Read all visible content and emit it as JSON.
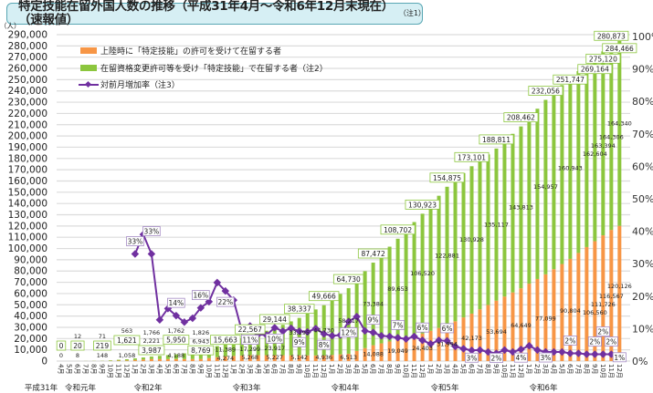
{
  "title": "特定技能在留外国人数の推移（平成31年4月～令和6年12月末現在）（速報値）",
  "title_note": "（注1）",
  "colors": {
    "orange": "#f79646",
    "green": "#8cc63e",
    "purple": "#7030a0",
    "title_bg": "#d6eff4",
    "title_border": "#5aa7b4"
  },
  "chart_data": {
    "type": "bar+line",
    "y_unit": "（人）",
    "ylim": [
      0,
      290000
    ],
    "y2lim": [
      0,
      100
    ],
    "grid": true,
    "legend_placement": "top-left",
    "y_ticks": [
      "0",
      "10,000",
      "20,000",
      "30,000",
      "40,000",
      "50,000",
      "60,000",
      "70,000",
      "80,000",
      "90,000",
      "100,000",
      "110,000",
      "120,000",
      "130,000",
      "140,000",
      "150,000",
      "160,000",
      "170,000",
      "180,000",
      "190,000",
      "200,000",
      "210,000",
      "220,000",
      "230,000",
      "240,000",
      "250,000",
      "260,000",
      "270,000",
      "280,000",
      "290,000"
    ],
    "y2_ticks": [
      "0%",
      "10%",
      "20%",
      "30%",
      "40%",
      "50%",
      "60%",
      "70%",
      "80%",
      "90%",
      "100%"
    ],
    "year_labels": [
      "平成31年",
      "令和元年",
      "令和2年",
      "令和3年",
      "令和4年",
      "令和5年",
      "令和6年"
    ],
    "categories": [
      "4月",
      "5月",
      "6月",
      "7月",
      "8月",
      "9月",
      "10月",
      "11月",
      "12月",
      "1月",
      "2月",
      "3月",
      "4月",
      "5月",
      "6月",
      "7月",
      "8月",
      "9月",
      "10月",
      "11月",
      "12月",
      "1月",
      "2月",
      "3月",
      "4月",
      "5月",
      "6月",
      "7月",
      "8月",
      "9月",
      "10月",
      "11月",
      "12月",
      "1月",
      "2月",
      "3月",
      "4月",
      "5月",
      "6月",
      "7月",
      "8月",
      "9月",
      "10月",
      "11月",
      "12月",
      "1月",
      "2月",
      "3月",
      "4月",
      "5月",
      "6月",
      "7月",
      "8月",
      "9月",
      "10月",
      "11月",
      "12月",
      "1月",
      "2月",
      "3月",
      "4月",
      "5月",
      "6月",
      "7月",
      "8月",
      "9月",
      "10月",
      "11月",
      "12月"
    ],
    "series": [
      {
        "name": "上陸時に「特定技能」の許可を受けて在留する者",
        "type": "bar-stacked",
        "values": [
          0,
          6,
          12,
          32,
          51,
          71,
          235,
          399,
          563,
          964,
          1365,
          1766,
          1765,
          1763,
          1762,
          1783,
          1805,
          1826,
          2642,
          3458,
          4274,
          4605,
          4937,
          5268,
          5254,
          5241,
          5227,
          5199,
          5170,
          5142,
          5073,
          5005,
          4936,
          5462,
          5987,
          6513,
          9038,
          11563,
          14088,
          15742,
          17395,
          19049,
          20834,
          22618,
          24403,
          26933,
          29464,
          31994,
          35387,
          38780,
          42173,
          46013,
          49854,
          53694,
          57346,
          60997,
          64649,
          68799,
          72949,
          77099,
          81667,
          86236,
          90804,
          96056,
          101308,
          106560,
          111726,
          116567,
          120126
        ]
      },
      {
        "name": "在留資格変更許可等を受け「特定技能」で在留する者（注2）",
        "type": "bar-stacked",
        "values": [
          0,
          4,
          8,
          55,
          101,
          148,
          451,
          755,
          1058,
          1446,
          1833,
          2221,
          2877,
          3532,
          4188,
          5106,
          6025,
          6943,
          8425,
          9907,
          11389,
          13359,
          15329,
          17299,
          19505,
          21711,
          23917,
          27010,
          30102,
          33195,
          37040,
          40885,
          44730,
          49226,
          53721,
          58217,
          63273,
          68328,
          73384,
          78807,
          84230,
          89653,
          95275,
          100898,
          106520,
          111974,
          117427,
          122881,
          125563,
          128246,
          130928,
          132324,
          133721,
          135117,
          138016,
          140915,
          143813,
          147528,
          151242,
          154957,
          156952,
          158948,
          160943,
          161497,
          162050,
          162604,
          163394,
          164306,
          164340
        ]
      },
      {
        "name": "対前月増加率（注3）",
        "type": "line",
        "axis": "right",
        "values": [
          null,
          null,
          null,
          null,
          null,
          null,
          null,
          null,
          null,
          33,
          39,
          33,
          12.7,
          16.2,
          14,
          12,
          13.2,
          16.4,
          18.3,
          24.2,
          21.6,
          18.8,
          9.3,
          10.8,
          8.2,
          8,
          10.3,
          9.2,
          10.1,
          9.2,
          9,
          10,
          8.4,
          7.8,
          8,
          12.2,
          13.7,
          9.3,
          8.8,
          7.8,
          7.6,
          7.2,
          6.8,
          7.6,
          6.4,
          5.3,
          6.4,
          6.2,
          4.5,
          3.8,
          3.3,
          3.4,
          2.8,
          2.4,
          3.4,
          2.8,
          3.6,
          4.7,
          3.4,
          2.8,
          2.8,
          2.8,
          2.4,
          2.4,
          2.1,
          2.1,
          2.1,
          2.1,
          0.9
        ]
      }
    ],
    "labeled_points": [
      {
        "i": 0,
        "total": "0",
        "green": "0",
        "orange": ""
      },
      {
        "i": 2,
        "total": "20",
        "green": "8",
        "orange": "12"
      },
      {
        "i": 5,
        "total": "219",
        "green": "148",
        "orange": "71"
      },
      {
        "i": 8,
        "total": "1,621",
        "green": "1,058",
        "orange": "563"
      },
      {
        "i": 11,
        "total": "3,987",
        "green": "2,221",
        "orange": "1,766"
      },
      {
        "i": 14,
        "total": "5,950",
        "green": "4,188",
        "orange": "1,762"
      },
      {
        "i": 17,
        "total": "8,769",
        "green": "6,943",
        "orange": "1,826"
      },
      {
        "i": 20,
        "total": "15,663",
        "green": "11,389",
        "orange": "4,274"
      },
      {
        "i": 23,
        "total": "22,567",
        "green": "17,299",
        "orange": "5,268"
      },
      {
        "i": 26,
        "total": "29,144",
        "green": "23,917",
        "orange": "5,227"
      },
      {
        "i": 29,
        "total": "38,337",
        "green": "33,195",
        "orange": "5,142"
      },
      {
        "i": 32,
        "total": "49,666",
        "green": "44,730",
        "orange": "4,936"
      },
      {
        "i": 35,
        "total": "64,730",
        "green": "58,217",
        "orange": "6,513"
      },
      {
        "i": 38,
        "total": "87,472",
        "green": "73,384",
        "orange": "14,088"
      },
      {
        "i": 41,
        "total": "108,702",
        "green": "89,653",
        "orange": "19,049"
      },
      {
        "i": 44,
        "total": "130,923",
        "green": "106,520",
        "orange": "24,403"
      },
      {
        "i": 47,
        "total": "154,875",
        "green": "122,881",
        "orange": "31,994"
      },
      {
        "i": 50,
        "total": "173,101",
        "green": "130,928",
        "orange": "42,173"
      },
      {
        "i": 53,
        "total": "188,811",
        "green": "135,117",
        "orange": "53,694"
      },
      {
        "i": 56,
        "total": "208,462",
        "green": "143,813",
        "orange": "64,649"
      },
      {
        "i": 59,
        "total": "232,056",
        "green": "154,957",
        "orange": "77,099"
      },
      {
        "i": 62,
        "total": "251,747",
        "green": "160,943",
        "orange": "90,804"
      },
      {
        "i": 65,
        "total": "269,164",
        "green": "162,604",
        "orange": "106,560"
      },
      {
        "i": 66,
        "total": "275,120",
        "green": "163,394",
        "orange": "111,726"
      },
      {
        "i": 67,
        "total": "280,873",
        "green": "164,306",
        "orange": "116,567"
      },
      {
        "i": 68,
        "total": "284,466",
        "green": "164,340",
        "orange": "120,126"
      }
    ],
    "rate_labels": [
      {
        "i": 9,
        "text": "33%"
      },
      {
        "i": 11,
        "text": "33%"
      },
      {
        "i": 14,
        "text": "14%"
      },
      {
        "i": 17,
        "text": "16%"
      },
      {
        "i": 20,
        "text": "22%"
      },
      {
        "i": 23,
        "text": "11%"
      },
      {
        "i": 26,
        "text": "10%"
      },
      {
        "i": 29,
        "text": "9%"
      },
      {
        "i": 32,
        "text": "8%"
      },
      {
        "i": 35,
        "text": "12%"
      },
      {
        "i": 38,
        "text": "9%"
      },
      {
        "i": 41,
        "text": "7%"
      },
      {
        "i": 44,
        "text": "6%"
      },
      {
        "i": 47,
        "text": "6%"
      },
      {
        "i": 50,
        "text": "3%"
      },
      {
        "i": 53,
        "text": "2%"
      },
      {
        "i": 56,
        "text": "4%"
      },
      {
        "i": 59,
        "text": "3%"
      },
      {
        "i": 62,
        "text": "2%"
      },
      {
        "i": 65,
        "text": "2%"
      },
      {
        "i": 66,
        "text": "2%"
      },
      {
        "i": 67,
        "text": "2%"
      },
      {
        "i": 68,
        "text": "1%"
      }
    ]
  }
}
